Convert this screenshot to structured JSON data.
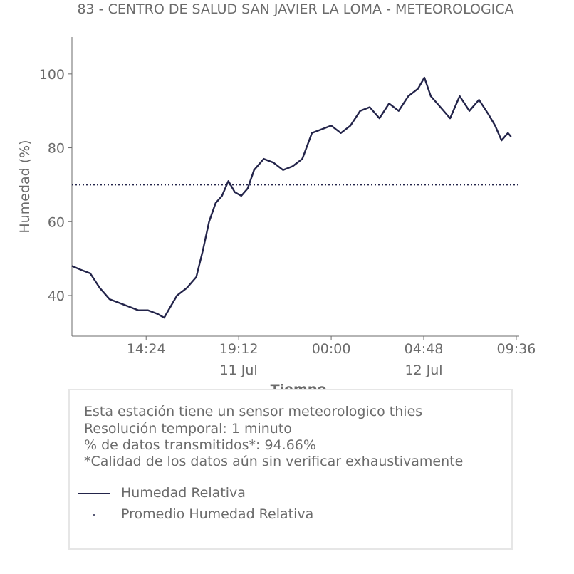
{
  "title": "83 - CENTRO DE SALUD SAN JAVIER LA LOMA - METEOROLOGICA",
  "info": {
    "line1": "Esta estación tiene un sensor meteorologico thies",
    "line2": "Resolución temporal: 1 minuto",
    "line3": "% de datos transmitidos*: 94.66%",
    "line4": "*Calidad de los datos aún sin verificar exhaustivamente"
  },
  "legend": {
    "series": "Humedad Relativa",
    "average": "Promedio Humedad Relativa"
  },
  "colors": {
    "series": "#23244a",
    "text": "#6b6b6b",
    "axis": "#6b6b6b"
  },
  "chart_data": {
    "type": "line",
    "title": "83 - CENTRO DE SALUD SAN JAVIER LA LOMA - METEOROLOGICA",
    "xlabel": "Tiempo",
    "ylabel": "Humedad (%)",
    "xlim": [
      "2023-07-11 10:33",
      "2023-07-12 09:45"
    ],
    "ylim": [
      29,
      110
    ],
    "x_ticks": [
      {
        "t": "2023-07-11 14:24",
        "label": "14:24",
        "sub": ""
      },
      {
        "t": "2023-07-11 19:12",
        "label": "19:12",
        "sub": "11 Jul"
      },
      {
        "t": "2023-07-12 00:00",
        "label": "00:00",
        "sub": ""
      },
      {
        "t": "2023-07-12 04:48",
        "label": "04:48",
        "sub": "12 Jul"
      },
      {
        "t": "2023-07-12 09:36",
        "label": "09:36",
        "sub": ""
      }
    ],
    "y_ticks": [
      40,
      60,
      80,
      100
    ],
    "series": [
      {
        "name": "Humedad Relativa",
        "x": [
          "2023-07-11 10:33",
          "2023-07-11 11:00",
          "2023-07-11 11:30",
          "2023-07-11 12:00",
          "2023-07-11 12:30",
          "2023-07-11 13:00",
          "2023-07-11 13:30",
          "2023-07-11 14:00",
          "2023-07-11 14:30",
          "2023-07-11 15:00",
          "2023-07-11 15:20",
          "2023-07-11 15:40",
          "2023-07-11 16:00",
          "2023-07-11 16:30",
          "2023-07-11 17:00",
          "2023-07-11 17:20",
          "2023-07-11 17:40",
          "2023-07-11 18:00",
          "2023-07-11 18:20",
          "2023-07-11 18:40",
          "2023-07-11 19:00",
          "2023-07-11 19:20",
          "2023-07-11 19:40",
          "2023-07-11 20:00",
          "2023-07-11 20:30",
          "2023-07-11 21:00",
          "2023-07-11 21:30",
          "2023-07-11 22:00",
          "2023-07-11 22:30",
          "2023-07-11 23:00",
          "2023-07-11 23:30",
          "2023-07-12 00:00",
          "2023-07-12 00:30",
          "2023-07-12 01:00",
          "2023-07-12 01:30",
          "2023-07-12 02:00",
          "2023-07-12 02:30",
          "2023-07-12 03:00",
          "2023-07-12 03:30",
          "2023-07-12 04:00",
          "2023-07-12 04:30",
          "2023-07-12 04:50",
          "2023-07-12 05:10",
          "2023-07-12 05:40",
          "2023-07-12 06:10",
          "2023-07-12 06:40",
          "2023-07-12 07:10",
          "2023-07-12 07:40",
          "2023-07-12 08:10",
          "2023-07-12 08:30",
          "2023-07-12 08:50",
          "2023-07-12 09:10",
          "2023-07-12 09:20"
        ],
        "values": [
          48,
          47,
          46,
          42,
          39,
          38,
          37,
          36,
          36,
          35,
          34,
          37,
          40,
          42,
          45,
          52,
          60,
          65,
          67,
          71,
          68,
          67,
          69,
          74,
          77,
          76,
          74,
          75,
          77,
          84,
          85,
          86,
          84,
          86,
          90,
          91,
          88,
          92,
          90,
          94,
          96,
          99,
          94,
          91,
          88,
          94,
          90,
          93,
          89,
          86,
          82,
          84,
          83
        ]
      }
    ],
    "average": {
      "name": "Promedio Humedad Relativa",
      "value": 70
    },
    "grid": false,
    "legend_position": "bottom"
  }
}
